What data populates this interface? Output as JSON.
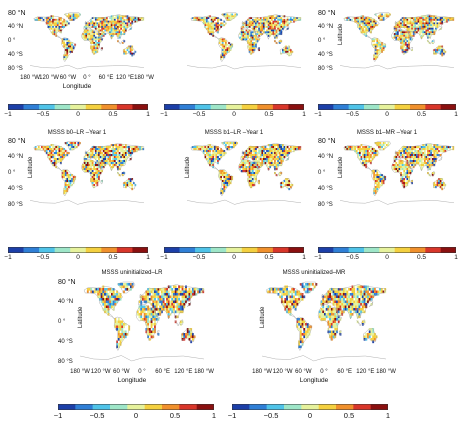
{
  "panels": [
    {
      "title": "",
      "show_lat": true,
      "show_lon": true,
      "show_xtitle": true,
      "show_ytitle": false,
      "seed": 11
    },
    {
      "title": "",
      "show_lat": false,
      "show_lon": false,
      "show_xtitle": false,
      "show_ytitle": false,
      "seed": 23
    },
    {
      "title": "",
      "show_lat": true,
      "show_lon": false,
      "show_xtitle": false,
      "show_ytitle": true,
      "seed": 37
    },
    {
      "title": "MSSS b0–LR –Year 1",
      "show_lat": true,
      "show_lon": false,
      "show_xtitle": false,
      "show_ytitle": true,
      "seed": 41
    },
    {
      "title": "MSSS b1–LR –Year 1",
      "show_lat": false,
      "show_lon": false,
      "show_xtitle": false,
      "show_ytitle": true,
      "seed": 53
    },
    {
      "title": "MSSS b1–MR –Year 1",
      "show_lat": true,
      "show_lon": false,
      "show_xtitle": false,
      "show_ytitle": true,
      "seed": 67
    },
    {
      "title": "MSSS uninitialized–LR",
      "show_lat": true,
      "show_lon": true,
      "show_xtitle": true,
      "show_ytitle": true,
      "seed": 71
    },
    {
      "title": "MSSS uninitialized–MR",
      "show_lat": false,
      "show_lon": true,
      "show_xtitle": true,
      "show_ytitle": true,
      "seed": 83
    }
  ],
  "lat_labels": [
    "80 °N",
    "40 °N",
    "0 °",
    "40 °S",
    "80 °S"
  ],
  "lon_labels": [
    "180 °W",
    "120 °W",
    "60 °W",
    "0 °",
    "60 °E",
    "120 °E",
    "180 °W"
  ],
  "xaxis_title": "Longitude",
  "yaxis_title": "Latitude",
  "colorbar": {
    "min": -1,
    "max": 1,
    "ticks": [
      "−1",
      "−0.5",
      "0",
      "0.5",
      "1"
    ],
    "colors": [
      "#1c3fa8",
      "#2f7fd6",
      "#4fc3e8",
      "#9ee6c8",
      "#e6f29c",
      "#f4d03f",
      "#f0902c",
      "#d8362a",
      "#8a1010"
    ]
  }
}
